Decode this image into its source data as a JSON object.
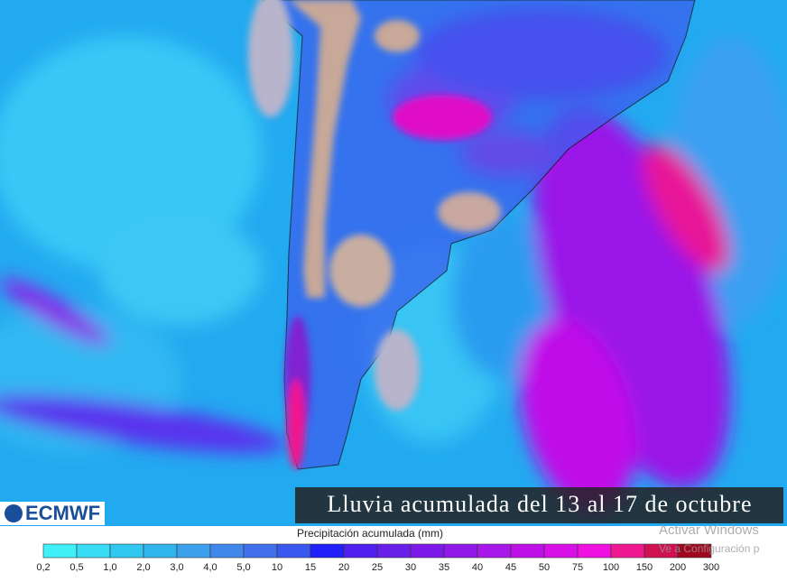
{
  "title": "Lluvia acumulada del 13 al 17 de octubre",
  "logo": "ECMWF",
  "legend": {
    "title": "Precipitación acumulada (mm)",
    "colors": [
      "#40f0f8",
      "#38dcf4",
      "#30c8f0",
      "#30b4ec",
      "#3ca0ec",
      "#4088ec",
      "#4070ec",
      "#3858f0",
      "#2020f8",
      "#5020f0",
      "#6820e8",
      "#7c18e8",
      "#9018e8",
      "#a818e8",
      "#c010e8",
      "#d810e8",
      "#f010e0",
      "#f01890",
      "#d01050",
      "#a00820"
    ],
    "ticks": [
      "0,2",
      "0,5",
      "1,0",
      "2,0",
      "3,0",
      "4,0",
      "5,0",
      "10",
      "15",
      "20",
      "25",
      "30",
      "35",
      "40",
      "45",
      "50",
      "75",
      "100",
      "150",
      "200",
      "300"
    ]
  },
  "watermark": [
    "Activar Windows",
    "Ve a Configuración p"
  ]
}
